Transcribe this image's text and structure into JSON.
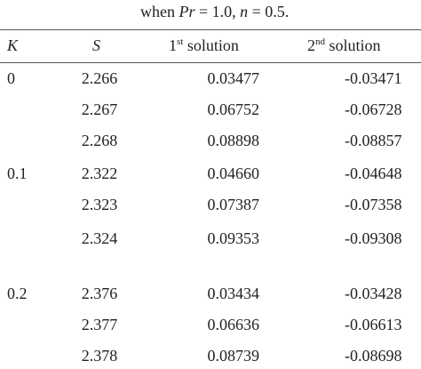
{
  "title": {
    "lead": "when",
    "var1": "Pr",
    "eq1": "= 1.0,",
    "var2": "n",
    "eq2": "= 0.5."
  },
  "header": {
    "k": "K",
    "s": "S",
    "first": {
      "num": "1",
      "sup": "st",
      "rest": "solution"
    },
    "second": {
      "num": "2",
      "sup": "nd",
      "rest": "solution"
    }
  },
  "groups": [
    {
      "k": "0",
      "rows": [
        [
          "2.266",
          "0.03477",
          "-0.03471"
        ],
        [
          "2.267",
          "0.06752",
          "-0.06728"
        ],
        [
          "2.268",
          "0.08898",
          "-0.08857"
        ]
      ]
    },
    {
      "k": "0.1",
      "rows": [
        [
          "2.322",
          "0.04660",
          "-0.04648"
        ],
        [
          "2.323",
          "0.07387",
          "-0.07358"
        ],
        [
          "2.324",
          "0.09353",
          "-0.09308"
        ]
      ]
    },
    {
      "k": "0.2",
      "rows": [
        [
          "2.376",
          "0.03434",
          "-0.03428"
        ],
        [
          "2.377",
          "0.06636",
          "-0.06613"
        ],
        [
          "2.378",
          "0.08739",
          "-0.08698"
        ]
      ]
    }
  ]
}
